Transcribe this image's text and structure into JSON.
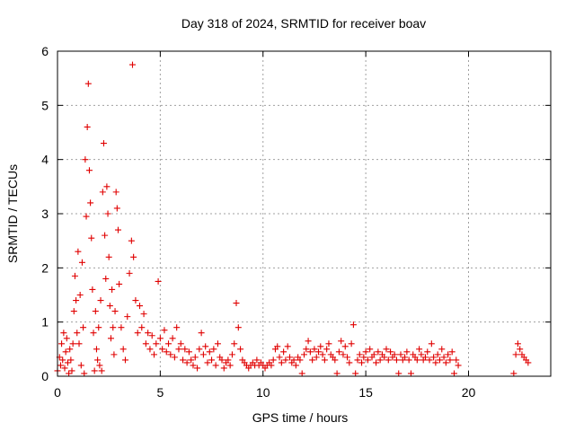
{
  "chart_data": {
    "type": "scatter",
    "title": "Day 318 of 2024, SRMTID for receiver boav",
    "xlabel": "GPS time / hours",
    "ylabel": "SRMTID / TECUs",
    "xlim": [
      0,
      24
    ],
    "ylim": [
      0,
      6
    ],
    "xticks": [
      0,
      5,
      10,
      15,
      20
    ],
    "yticks": [
      0,
      1,
      2,
      3,
      4,
      5,
      6
    ],
    "xtick_labels": [
      "0",
      "5",
      "10",
      "15",
      "20"
    ],
    "ytick_labels": [
      "0",
      "1",
      "2",
      "3",
      "4",
      "5",
      "6"
    ],
    "grid": true,
    "marker": "+",
    "series": [
      {
        "name": "SRMTID",
        "color": "#e00000",
        "points": [
          [
            0.0,
            0.1
          ],
          [
            0.1,
            0.35
          ],
          [
            0.15,
            0.2
          ],
          [
            0.2,
            0.6
          ],
          [
            0.25,
            0.3
          ],
          [
            0.3,
            0.8
          ],
          [
            0.35,
            0.15
          ],
          [
            0.4,
            0.45
          ],
          [
            0.45,
            0.7
          ],
          [
            0.5,
            0.25
          ],
          [
            0.55,
            0.05
          ],
          [
            0.6,
            0.5
          ],
          [
            0.65,
            0.3
          ],
          [
            0.7,
            0.1
          ],
          [
            0.75,
            0.6
          ],
          [
            0.8,
            1.2
          ],
          [
            0.85,
            1.85
          ],
          [
            0.9,
            1.4
          ],
          [
            0.95,
            0.8
          ],
          [
            1.0,
            2.3
          ],
          [
            1.05,
            0.6
          ],
          [
            1.1,
            1.5
          ],
          [
            1.15,
            0.2
          ],
          [
            1.2,
            2.1
          ],
          [
            1.25,
            0.9
          ],
          [
            1.3,
            0.05
          ],
          [
            1.35,
            4.0
          ],
          [
            1.4,
            2.95
          ],
          [
            1.45,
            4.6
          ],
          [
            1.5,
            5.4
          ],
          [
            1.55,
            3.8
          ],
          [
            1.6,
            3.2
          ],
          [
            1.65,
            2.55
          ],
          [
            1.7,
            1.6
          ],
          [
            1.75,
            0.8
          ],
          [
            1.8,
            0.1
          ],
          [
            1.85,
            1.2
          ],
          [
            1.9,
            0.5
          ],
          [
            1.95,
            0.3
          ],
          [
            2.0,
            0.9
          ],
          [
            2.05,
            0.2
          ],
          [
            2.1,
            1.4
          ],
          [
            2.15,
            0.1
          ],
          [
            2.2,
            3.4
          ],
          [
            2.25,
            4.3
          ],
          [
            2.3,
            2.6
          ],
          [
            2.35,
            1.8
          ],
          [
            2.4,
            3.5
          ],
          [
            2.45,
            3.0
          ],
          [
            2.5,
            2.2
          ],
          [
            2.55,
            1.3
          ],
          [
            2.6,
            0.7
          ],
          [
            2.65,
            1.6
          ],
          [
            2.7,
            0.9
          ],
          [
            2.75,
            0.4
          ],
          [
            2.8,
            1.2
          ],
          [
            2.85,
            3.4
          ],
          [
            2.9,
            3.1
          ],
          [
            2.95,
            2.7
          ],
          [
            3.0,
            1.7
          ],
          [
            3.1,
            0.9
          ],
          [
            3.2,
            0.5
          ],
          [
            3.3,
            0.3
          ],
          [
            3.4,
            1.1
          ],
          [
            3.5,
            1.9
          ],
          [
            3.6,
            2.5
          ],
          [
            3.65,
            5.75
          ],
          [
            3.7,
            2.2
          ],
          [
            3.8,
            1.4
          ],
          [
            3.9,
            0.8
          ],
          [
            4.0,
            1.3
          ],
          [
            4.1,
            0.9
          ],
          [
            4.2,
            1.15
          ],
          [
            4.3,
            0.6
          ],
          [
            4.4,
            0.8
          ],
          [
            4.5,
            0.5
          ],
          [
            4.6,
            0.75
          ],
          [
            4.7,
            0.4
          ],
          [
            4.8,
            0.6
          ],
          [
            4.9,
            1.75
          ],
          [
            5.0,
            0.7
          ],
          [
            5.1,
            0.5
          ],
          [
            5.2,
            0.85
          ],
          [
            5.3,
            0.45
          ],
          [
            5.4,
            0.6
          ],
          [
            5.5,
            0.4
          ],
          [
            5.6,
            0.7
          ],
          [
            5.7,
            0.35
          ],
          [
            5.8,
            0.9
          ],
          [
            5.9,
            0.5
          ],
          [
            6.0,
            0.6
          ],
          [
            6.1,
            0.3
          ],
          [
            6.2,
            0.5
          ],
          [
            6.3,
            0.25
          ],
          [
            6.4,
            0.45
          ],
          [
            6.5,
            0.3
          ],
          [
            6.6,
            0.2
          ],
          [
            6.7,
            0.35
          ],
          [
            6.8,
            0.15
          ],
          [
            6.9,
            0.5
          ],
          [
            7.0,
            0.8
          ],
          [
            7.1,
            0.4
          ],
          [
            7.2,
            0.55
          ],
          [
            7.3,
            0.25
          ],
          [
            7.4,
            0.45
          ],
          [
            7.5,
            0.3
          ],
          [
            7.6,
            0.5
          ],
          [
            7.7,
            0.2
          ],
          [
            7.8,
            0.6
          ],
          [
            7.9,
            0.35
          ],
          [
            8.0,
            0.3
          ],
          [
            8.1,
            0.15
          ],
          [
            8.2,
            0.25
          ],
          [
            8.3,
            0.3
          ],
          [
            8.4,
            0.2
          ],
          [
            8.5,
            0.4
          ],
          [
            8.6,
            0.6
          ],
          [
            8.7,
            1.35
          ],
          [
            8.8,
            0.9
          ],
          [
            8.9,
            0.5
          ],
          [
            9.0,
            0.3
          ],
          [
            9.1,
            0.25
          ],
          [
            9.2,
            0.2
          ],
          [
            9.3,
            0.15
          ],
          [
            9.4,
            0.2
          ],
          [
            9.5,
            0.25
          ],
          [
            9.6,
            0.2
          ],
          [
            9.7,
            0.3
          ],
          [
            9.8,
            0.2
          ],
          [
            9.9,
            0.25
          ],
          [
            10.0,
            0.2
          ],
          [
            10.1,
            0.15
          ],
          [
            10.2,
            0.2
          ],
          [
            10.3,
            0.25
          ],
          [
            10.4,
            0.2
          ],
          [
            10.5,
            0.3
          ],
          [
            10.6,
            0.5
          ],
          [
            10.7,
            0.55
          ],
          [
            10.8,
            0.35
          ],
          [
            10.9,
            0.25
          ],
          [
            11.0,
            0.45
          ],
          [
            11.1,
            0.3
          ],
          [
            11.2,
            0.55
          ],
          [
            11.3,
            0.35
          ],
          [
            11.4,
            0.25
          ],
          [
            11.5,
            0.3
          ],
          [
            11.6,
            0.2
          ],
          [
            11.7,
            0.35
          ],
          [
            11.8,
            0.3
          ],
          [
            11.9,
            0.05
          ],
          [
            12.0,
            0.4
          ],
          [
            12.1,
            0.5
          ],
          [
            12.2,
            0.65
          ],
          [
            12.3,
            0.45
          ],
          [
            12.4,
            0.3
          ],
          [
            12.5,
            0.5
          ],
          [
            12.6,
            0.35
          ],
          [
            12.7,
            0.45
          ],
          [
            12.8,
            0.55
          ],
          [
            12.9,
            0.4
          ],
          [
            13.0,
            0.3
          ],
          [
            13.1,
            0.5
          ],
          [
            13.2,
            0.6
          ],
          [
            13.3,
            0.4
          ],
          [
            13.4,
            0.35
          ],
          [
            13.5,
            0.3
          ],
          [
            13.6,
            0.05
          ],
          [
            13.7,
            0.45
          ],
          [
            13.8,
            0.65
          ],
          [
            13.9,
            0.4
          ],
          [
            14.0,
            0.55
          ],
          [
            14.1,
            0.35
          ],
          [
            14.2,
            0.25
          ],
          [
            14.3,
            0.6
          ],
          [
            14.4,
            0.95
          ],
          [
            14.5,
            0.05
          ],
          [
            14.6,
            0.3
          ],
          [
            14.7,
            0.4
          ],
          [
            14.8,
            0.25
          ],
          [
            14.9,
            0.35
          ],
          [
            15.0,
            0.45
          ],
          [
            15.1,
            0.3
          ],
          [
            15.2,
            0.5
          ],
          [
            15.3,
            0.35
          ],
          [
            15.4,
            0.4
          ],
          [
            15.5,
            0.25
          ],
          [
            15.6,
            0.45
          ],
          [
            15.7,
            0.3
          ],
          [
            15.8,
            0.4
          ],
          [
            15.9,
            0.35
          ],
          [
            16.0,
            0.5
          ],
          [
            16.1,
            0.3
          ],
          [
            16.2,
            0.45
          ],
          [
            16.3,
            0.35
          ],
          [
            16.4,
            0.4
          ],
          [
            16.5,
            0.3
          ],
          [
            16.6,
            0.05
          ],
          [
            16.7,
            0.4
          ],
          [
            16.8,
            0.3
          ],
          [
            16.9,
            0.35
          ],
          [
            17.0,
            0.45
          ],
          [
            17.1,
            0.3
          ],
          [
            17.2,
            0.05
          ],
          [
            17.3,
            0.4
          ],
          [
            17.4,
            0.35
          ],
          [
            17.5,
            0.3
          ],
          [
            17.6,
            0.5
          ],
          [
            17.7,
            0.4
          ],
          [
            17.8,
            0.3
          ],
          [
            17.9,
            0.35
          ],
          [
            18.0,
            0.45
          ],
          [
            18.1,
            0.3
          ],
          [
            18.2,
            0.6
          ],
          [
            18.3,
            0.35
          ],
          [
            18.4,
            0.25
          ],
          [
            18.5,
            0.4
          ],
          [
            18.6,
            0.3
          ],
          [
            18.7,
            0.5
          ],
          [
            18.8,
            0.35
          ],
          [
            18.9,
            0.25
          ],
          [
            19.0,
            0.4
          ],
          [
            19.1,
            0.3
          ],
          [
            19.2,
            0.45
          ],
          [
            19.3,
            0.05
          ],
          [
            19.4,
            0.3
          ],
          [
            19.5,
            0.2
          ],
          [
            22.2,
            0.05
          ],
          [
            22.3,
            0.4
          ],
          [
            22.4,
            0.6
          ],
          [
            22.5,
            0.5
          ],
          [
            22.6,
            0.4
          ],
          [
            22.7,
            0.35
          ],
          [
            22.8,
            0.3
          ],
          [
            22.9,
            0.25
          ]
        ]
      }
    ]
  }
}
